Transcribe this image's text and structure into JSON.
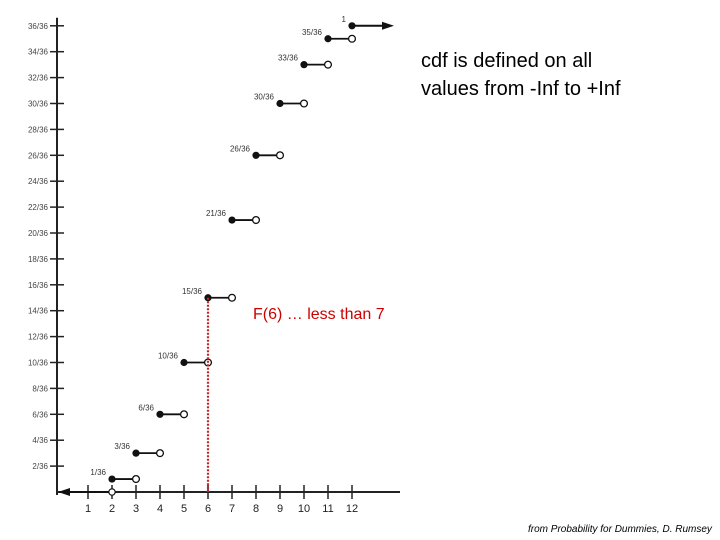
{
  "notes": {
    "line1": "cdf is defined on all",
    "line2": "values from -Inf to +Inf"
  },
  "annotation": "F(6) … less than 7",
  "credit": "from Probability for Dummies, D. Rumsey",
  "colors": {
    "axis": "#222222",
    "step": "#111111",
    "annotation_text": "#cc0000",
    "annotation_line": "#c0282a"
  },
  "chart_data": {
    "type": "line",
    "x_ticks": [
      "1",
      "2",
      "3",
      "4",
      "5",
      "6",
      "7",
      "8",
      "9",
      "10",
      "11",
      "12"
    ],
    "y_ticks": [
      "2/36",
      "4/36",
      "6/36",
      "8/36",
      "10/36",
      "12/36",
      "14/36",
      "16/36",
      "18/36",
      "20/36",
      "22/36",
      "24/36",
      "26/36",
      "28/36",
      "30/36",
      "32/36",
      "34/36",
      "36/36"
    ],
    "xlim": [
      0,
      12
    ],
    "ylim": [
      0,
      36
    ],
    "steps": [
      {
        "x": 2,
        "label": "1/36",
        "y": 1
      },
      {
        "x": 3,
        "label": "3/36",
        "y": 3
      },
      {
        "x": 4,
        "label": "6/36",
        "y": 6
      },
      {
        "x": 5,
        "label": "10/36",
        "y": 10
      },
      {
        "x": 6,
        "label": "15/36",
        "y": 15
      },
      {
        "x": 7,
        "label": "21/36",
        "y": 21
      },
      {
        "x": 8,
        "label": "26/36",
        "y": 26
      },
      {
        "x": 9,
        "label": "30/36",
        "y": 30
      },
      {
        "x": 10,
        "label": "33/36",
        "y": 33
      },
      {
        "x": 11,
        "label": "35/36",
        "y": 35
      },
      {
        "x": 12,
        "label": "1",
        "y": 36
      }
    ],
    "zero_ray": {
      "from_x": 2,
      "y": 0,
      "direction": "left"
    },
    "final_ray": {
      "from_x": 12,
      "y": 36,
      "direction": "right"
    },
    "marker": {
      "x": 6,
      "from_y": 0,
      "to_y": 15
    }
  }
}
